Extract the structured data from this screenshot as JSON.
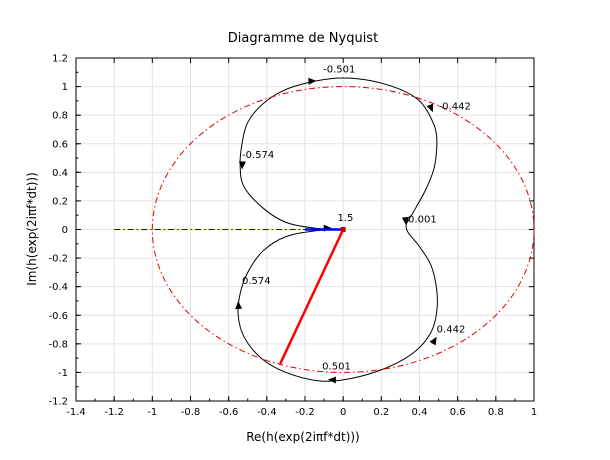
{
  "chart_data": {
    "type": "line",
    "title": "Diagramme de Nyquist",
    "xlabel": "Re(h(exp(2iπf*dt)))",
    "ylabel": "Im(h(exp(2iπf*dt)))",
    "xlim": [
      -1.4,
      1.0
    ],
    "ylim": [
      -1.2,
      1.2
    ],
    "xticks": [
      -1.4,
      -1.2,
      -1,
      -0.8,
      -0.6,
      -0.4,
      -0.2,
      0,
      0.2,
      0.4,
      0.6,
      0.8,
      1
    ],
    "xtick_labels": [
      "-1.4",
      "-1.2",
      "-1",
      "-0.8",
      "-0.6",
      "-0.4",
      "-0.2",
      "0",
      "0.2",
      "0.4",
      "0.6",
      "0.8",
      "1"
    ],
    "yticks": [
      -1.2,
      -1,
      -0.8,
      -0.6,
      -0.4,
      -0.2,
      0,
      0.2,
      0.4,
      0.6,
      0.8,
      1,
      1.2
    ],
    "ytick_labels": [
      "-1.2",
      "-1",
      "-0.8",
      "-0.6",
      "-0.4",
      "-0.2",
      "0",
      "0.2",
      "0.4",
      "0.6",
      "0.8",
      "1",
      "1.2"
    ],
    "grid": true,
    "series": [
      {
        "kind": "nyquist-curve",
        "color": "#000000",
        "points": [
          [
            0.0,
            0.0
          ],
          [
            -0.15,
            0.01
          ],
          [
            -0.3,
            0.05
          ],
          [
            -0.42,
            0.15
          ],
          [
            -0.52,
            0.3
          ],
          [
            -0.54,
            0.45
          ],
          [
            -0.53,
            0.6
          ],
          [
            -0.5,
            0.75
          ],
          [
            -0.42,
            0.88
          ],
          [
            -0.3,
            0.98
          ],
          [
            -0.14,
            1.04
          ],
          [
            0.0,
            1.06
          ],
          [
            0.15,
            1.04
          ],
          [
            0.3,
            0.98
          ],
          [
            0.4,
            0.9
          ],
          [
            0.46,
            0.78
          ],
          [
            0.49,
            0.65
          ],
          [
            0.48,
            0.45
          ],
          [
            0.44,
            0.3
          ],
          [
            0.38,
            0.15
          ],
          [
            0.34,
            0.06
          ],
          [
            0.33,
            0.03
          ],
          [
            0.34,
            -0.02
          ],
          [
            0.4,
            -0.12
          ],
          [
            0.46,
            -0.25
          ],
          [
            0.49,
            -0.42
          ],
          [
            0.49,
            -0.58
          ],
          [
            0.46,
            -0.72
          ],
          [
            0.38,
            -0.85
          ],
          [
            0.24,
            -0.96
          ],
          [
            0.05,
            -1.04
          ],
          [
            -0.12,
            -1.06
          ],
          [
            -0.3,
            -1.0
          ],
          [
            -0.43,
            -0.9
          ],
          [
            -0.52,
            -0.75
          ],
          [
            -0.55,
            -0.6
          ],
          [
            -0.54,
            -0.45
          ],
          [
            -0.5,
            -0.3
          ],
          [
            -0.42,
            -0.15
          ],
          [
            -0.3,
            -0.05
          ],
          [
            -0.15,
            -0.01
          ],
          [
            0.0,
            0.0
          ]
        ],
        "arrows": [
          {
            "x": -0.14,
            "y": 1.04,
            "dx": 1,
            "dy": 0.05
          },
          {
            "x": 0.47,
            "y": 0.82,
            "dx": 0.4,
            "dy": -1
          },
          {
            "x": -0.53,
            "y": 0.42,
            "dx": -0.05,
            "dy": -1
          },
          {
            "x": 0.33,
            "y": 0.03,
            "dx": 0.1,
            "dy": -1
          },
          {
            "x": -0.55,
            "y": -0.5,
            "dx": -0.05,
            "dy": 1
          },
          {
            "x": 0.49,
            "y": -0.75,
            "dx": 0.6,
            "dy": 1
          },
          {
            "x": -0.08,
            "y": -1.05,
            "dx": -1,
            "dy": 0.05
          },
          {
            "x": -0.06,
            "y": 0.01,
            "dx": 1,
            "dy": 0
          }
        ]
      },
      {
        "kind": "unit-circle",
        "color": "#e00000",
        "dash": "dashdot",
        "center": [
          0,
          0
        ],
        "radius": 1.0
      },
      {
        "kind": "segment",
        "color": "#0000d0",
        "dash": "dashdot",
        "from": [
          -1.2,
          0.0
        ],
        "to": [
          0.0,
          0.0
        ]
      },
      {
        "kind": "vector",
        "color": "#0000ff",
        "from": [
          0.0,
          0.0
        ],
        "to": [
          -0.2,
          0.0
        ],
        "width": 2.5
      },
      {
        "kind": "vector",
        "color": "#ff0000",
        "from": [
          0.0,
          0.0
        ],
        "to": [
          -0.33,
          -0.94
        ],
        "width": 2.5
      }
    ],
    "annotations": [
      {
        "text": "-0.501",
        "x": -0.105,
        "y": 1.1
      },
      {
        "text": "-0.442",
        "x": 0.5,
        "y": 0.84
      },
      {
        "text": "-0.574",
        "x": -0.53,
        "y": 0.5
      },
      {
        "text": "1.5",
        "x": -0.03,
        "y": 0.06
      },
      {
        "text": "0.001",
        "x": 0.34,
        "y": 0.05
      },
      {
        "text": "0.574",
        "x": -0.53,
        "y": -0.38
      },
      {
        "text": "0.442",
        "x": 0.49,
        "y": -0.72
      },
      {
        "text": "0.501",
        "x": -0.11,
        "y": -0.98
      }
    ]
  }
}
